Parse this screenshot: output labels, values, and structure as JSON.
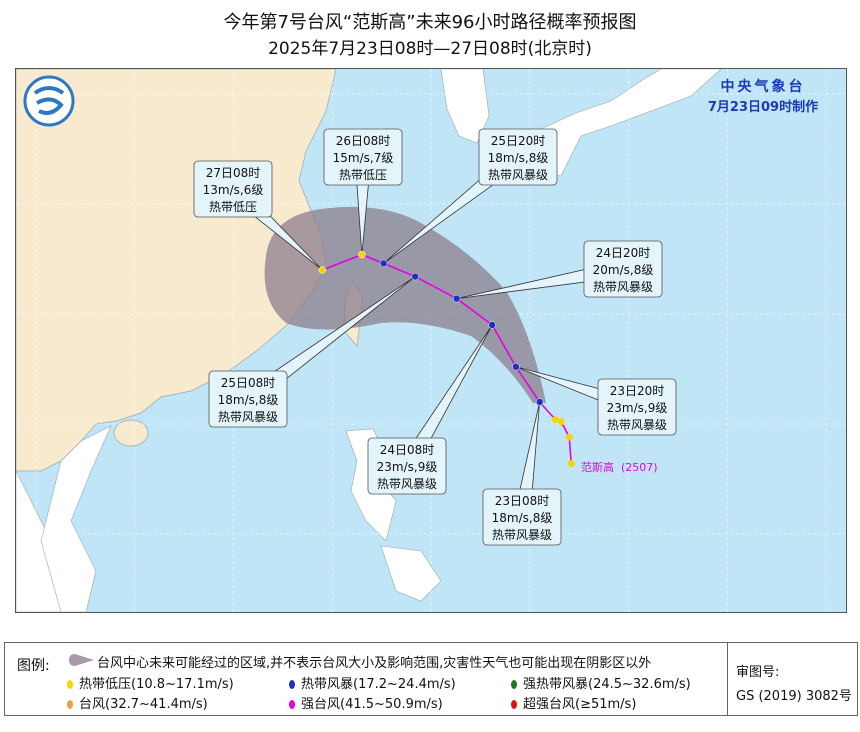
{
  "title": "今年第7号台风“范斯高”未来96小时路径概率预报图",
  "subtitle": "2025年7月23日08时—27日08时(北京时)",
  "agency": {
    "name": "中央气象台",
    "issued": "7月23日09时制作"
  },
  "typhoon": {
    "name": "范斯高",
    "code": "(2507)"
  },
  "axes": {
    "lon_ticks": [
      "105° E",
      "110° E",
      "115° E",
      "120° E",
      "125° E",
      "130° E",
      "135° E",
      "140° E",
      "145° E"
    ],
    "lat_ticks": [
      "15° N",
      "20° N",
      "25° N",
      "30° N",
      "35° N"
    ]
  },
  "colors": {
    "track": "#e600e6",
    "cone": "#8c7d8c",
    "sea": "#bfe5f6",
    "china": "#f7eacf",
    "tropical_depression": "#f5d400",
    "tropical_storm": "#1f2fbf"
  },
  "past_track": [
    {
      "lon": 132.1,
      "lat": 18.2
    },
    {
      "lon": 132.0,
      "lat": 19.4
    },
    {
      "lon": 131.6,
      "lat": 20.1
    },
    {
      "lon": 131.3,
      "lat": 20.2
    }
  ],
  "forecast": [
    {
      "time": "23日08时",
      "wind": "18m/s,8级",
      "level": "热带风暴级",
      "lon": 130.5,
      "lat": 21.0,
      "intensity": "tropical_storm"
    },
    {
      "time": "23日20时",
      "wind": "23m/s,9级",
      "level": "热带风暴级",
      "lon": 129.3,
      "lat": 22.6,
      "intensity": "tropical_storm"
    },
    {
      "time": "24日08时",
      "wind": "23m/s,9级",
      "level": "热带风暴级",
      "lon": 128.1,
      "lat": 24.5,
      "intensity": "tropical_storm"
    },
    {
      "time": "24日20时",
      "wind": "20m/s,8级",
      "level": "热带风暴级",
      "lon": 126.3,
      "lat": 25.7,
      "intensity": "tropical_storm"
    },
    {
      "time": "25日08时",
      "wind": "18m/s,8级",
      "level": "热带风暴级",
      "lon": 124.2,
      "lat": 26.7,
      "intensity": "tropical_storm"
    },
    {
      "time": "25日20时",
      "wind": "18m/s,8级",
      "level": "热带风暴级",
      "lon": 122.6,
      "lat": 27.3,
      "intensity": "tropical_storm"
    },
    {
      "time": "26日08时",
      "wind": "15m/s,7级",
      "level": "热带低压",
      "lon": 121.5,
      "lat": 27.7,
      "intensity": "tropical_depression"
    },
    {
      "time": "27日08时",
      "wind": "13m/s,6级",
      "level": "热带低压",
      "lon": 119.5,
      "lat": 27.0,
      "intensity": "tropical_depression"
    }
  ],
  "legend": {
    "label": "图例:",
    "cone_desc": "台风中心未来可能经过的区域,并不表示台风大小及影响范围,灾害性天气也可能出现在阴影区以外",
    "items": [
      {
        "text": "热带低压(10.8~17.1m/s)",
        "color": "#f5d400"
      },
      {
        "text": "热带风暴(17.2~24.4m/s)",
        "color": "#1f2fbf"
      },
      {
        "text": "强热带风暴(24.5~32.6m/s)",
        "color": "#1e7a1e"
      },
      {
        "text": "台风(32.7~41.4m/s)",
        "color": "#f59a4a"
      },
      {
        "text": "强台风(41.5~50.9m/s)",
        "color": "#e600e6"
      },
      {
        "text": "超强台风(≥51m/s)",
        "color": "#e01010"
      }
    ],
    "approval_label": "审图号:",
    "approval_no": "GS (2019) 3082号"
  }
}
